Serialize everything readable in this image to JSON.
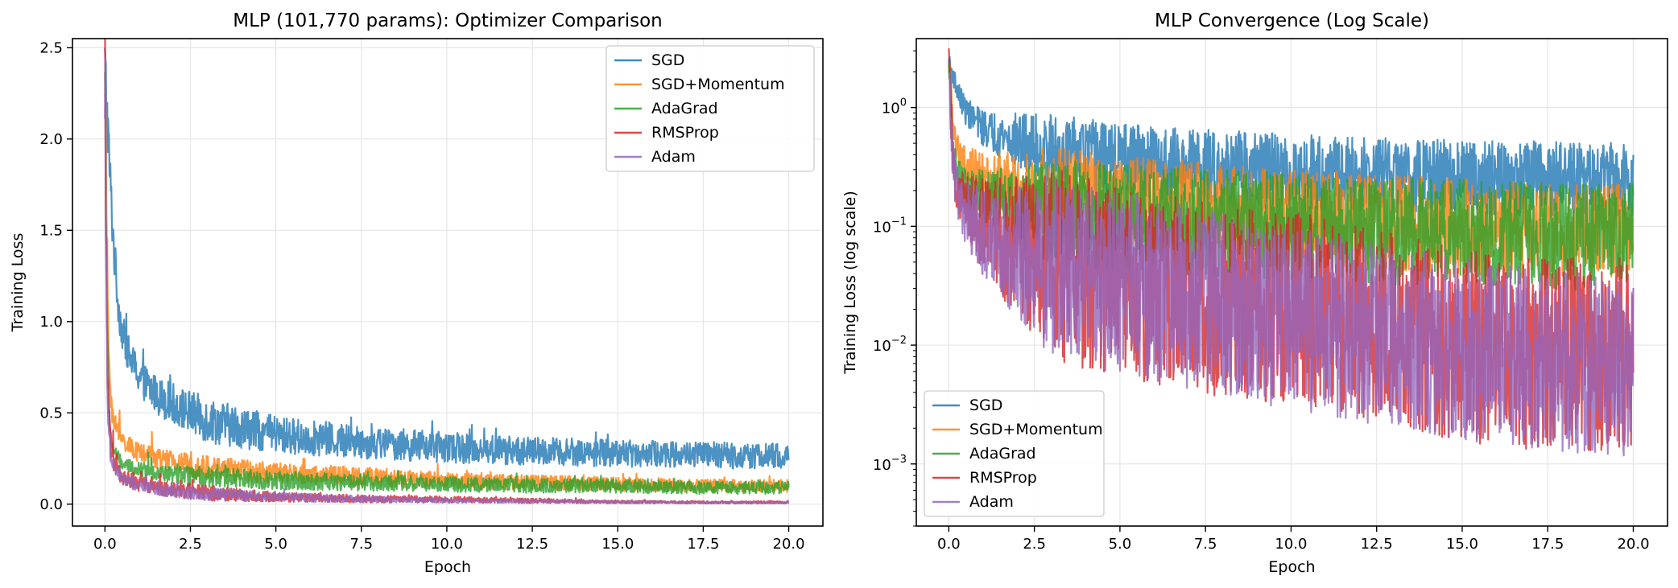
{
  "chart_data": [
    {
      "type": "line",
      "title": "MLP (101,770 params): Optimizer Comparison",
      "xlabel": "Epoch",
      "ylabel": "Training Loss",
      "xlim": [
        -0.95,
        21.0
      ],
      "ylim": [
        -0.12,
        2.55
      ],
      "xticks": [
        "0.0",
        "2.5",
        "5.0",
        "7.5",
        "10.0",
        "12.5",
        "15.0",
        "17.5",
        "20.0"
      ],
      "yticks": [
        "0.0",
        "0.5",
        "1.0",
        "1.5",
        "2.0",
        "2.5"
      ],
      "grid": true,
      "yscale": "linear",
      "legend_position": "top-right",
      "series": [
        {
          "name": "SGD",
          "color": "#1f77b4",
          "start": 2.42,
          "end": 0.26,
          "points": [
            [
              0,
              2.42
            ],
            [
              0.1,
              2.0
            ],
            [
              0.2,
              1.6
            ],
            [
              0.3,
              1.3
            ],
            [
              0.4,
              1.08
            ],
            [
              0.5,
              0.95
            ],
            [
              0.7,
              0.82
            ],
            [
              1.0,
              0.7
            ],
            [
              1.5,
              0.6
            ],
            [
              2.0,
              0.55
            ],
            [
              3.0,
              0.46
            ],
            [
              4.0,
              0.42
            ],
            [
              5.0,
              0.38
            ],
            [
              7.5,
              0.34
            ],
            [
              10.0,
              0.31
            ],
            [
              12.5,
              0.29
            ],
            [
              15.0,
              0.28
            ],
            [
              17.5,
              0.27
            ],
            [
              20.0,
              0.26
            ]
          ]
        },
        {
          "name": "SGD+Momentum",
          "color": "#ff7f0e",
          "start": 2.43,
          "end": 0.1,
          "points": [
            [
              0,
              2.43
            ],
            [
              0.05,
              1.6
            ],
            [
              0.1,
              0.9
            ],
            [
              0.2,
              0.5
            ],
            [
              0.5,
              0.35
            ],
            [
              1.0,
              0.28
            ],
            [
              2.0,
              0.23
            ],
            [
              3.0,
              0.2
            ],
            [
              5.0,
              0.17
            ],
            [
              7.5,
              0.15
            ],
            [
              10.0,
              0.13
            ],
            [
              12.5,
              0.12
            ],
            [
              15.0,
              0.11
            ],
            [
              17.5,
              0.1
            ],
            [
              20.0,
              0.1
            ]
          ]
        },
        {
          "name": "AdaGrad",
          "color": "#2ca02c",
          "start": 2.38,
          "end": 0.09,
          "points": [
            [
              0,
              2.38
            ],
            [
              0.05,
              1.3
            ],
            [
              0.1,
              0.6
            ],
            [
              0.2,
              0.32
            ],
            [
              0.5,
              0.22
            ],
            [
              1.0,
              0.19
            ],
            [
              2.0,
              0.16
            ],
            [
              3.0,
              0.15
            ],
            [
              5.0,
              0.13
            ],
            [
              7.5,
              0.12
            ],
            [
              10.0,
              0.11
            ],
            [
              12.5,
              0.1
            ],
            [
              15.0,
              0.1
            ],
            [
              17.5,
              0.09
            ],
            [
              20.0,
              0.09
            ]
          ]
        },
        {
          "name": "RMSProp",
          "color": "#d62728",
          "start": 2.4,
          "end": 0.01,
          "points": [
            [
              0,
              2.4
            ],
            [
              0.05,
              1.2
            ],
            [
              0.1,
              0.5
            ],
            [
              0.2,
              0.25
            ],
            [
              0.5,
              0.15
            ],
            [
              1.0,
              0.11
            ],
            [
              2.0,
              0.08
            ],
            [
              3.0,
              0.06
            ],
            [
              5.0,
              0.04
            ],
            [
              7.5,
              0.03
            ],
            [
              10.0,
              0.025
            ],
            [
              12.5,
              0.018
            ],
            [
              15.0,
              0.012
            ],
            [
              17.5,
              0.01
            ],
            [
              20.0,
              0.01
            ]
          ]
        },
        {
          "name": "Adam",
          "color": "#9467bd",
          "start": 2.35,
          "end": 0.008,
          "points": [
            [
              0,
              2.35
            ],
            [
              0.05,
              1.1
            ],
            [
              0.1,
              0.45
            ],
            [
              0.2,
              0.22
            ],
            [
              0.5,
              0.14
            ],
            [
              1.0,
              0.1
            ],
            [
              2.0,
              0.07
            ],
            [
              3.0,
              0.055
            ],
            [
              5.0,
              0.04
            ],
            [
              7.5,
              0.028
            ],
            [
              10.0,
              0.02
            ],
            [
              12.5,
              0.015
            ],
            [
              15.0,
              0.011
            ],
            [
              17.5,
              0.009
            ],
            [
              20.0,
              0.008
            ]
          ]
        }
      ]
    },
    {
      "type": "line",
      "title": "MLP Convergence (Log Scale)",
      "xlabel": "Epoch",
      "ylabel": "Training Loss (log scale)",
      "xlim": [
        -0.95,
        21.0
      ],
      "ylim": [
        0.0003,
        3.8
      ],
      "xticks": [
        "0.0",
        "2.5",
        "5.0",
        "7.5",
        "10.0",
        "12.5",
        "15.0",
        "17.5",
        "20.0"
      ],
      "yticks": [
        {
          "value": 1,
          "mantissa": "10",
          "exp": "0"
        },
        {
          "value": 0.1,
          "mantissa": "10",
          "exp": "−1"
        },
        {
          "value": 0.01,
          "mantissa": "10",
          "exp": "−2"
        },
        {
          "value": 0.001,
          "mantissa": "10",
          "exp": "−3"
        }
      ],
      "grid": true,
      "yscale": "log",
      "legend_position": "bottom-left",
      "series": [
        {
          "name": "SGD",
          "color": "#1f77b4",
          "points": [
            [
              0,
              2.42
            ],
            [
              0.1,
              2.0
            ],
            [
              0.2,
              1.6
            ],
            [
              0.3,
              1.3
            ],
            [
              0.5,
              0.95
            ],
            [
              1.0,
              0.7
            ],
            [
              2.0,
              0.55
            ],
            [
              3.0,
              0.46
            ],
            [
              5.0,
              0.38
            ],
            [
              7.5,
              0.34
            ],
            [
              10.0,
              0.31
            ],
            [
              12.5,
              0.29
            ],
            [
              15.0,
              0.28
            ],
            [
              17.5,
              0.27
            ],
            [
              20.0,
              0.26
            ]
          ]
        },
        {
          "name": "SGD+Momentum",
          "color": "#ff7f0e",
          "points": [
            [
              0,
              2.43
            ],
            [
              0.05,
              1.6
            ],
            [
              0.1,
              0.9
            ],
            [
              0.2,
              0.5
            ],
            [
              0.5,
              0.35
            ],
            [
              1.0,
              0.28
            ],
            [
              2.0,
              0.23
            ],
            [
              3.0,
              0.2
            ],
            [
              5.0,
              0.17
            ],
            [
              7.5,
              0.15
            ],
            [
              10.0,
              0.13
            ],
            [
              12.5,
              0.12
            ],
            [
              15.0,
              0.11
            ],
            [
              17.5,
              0.1
            ],
            [
              20.0,
              0.1
            ]
          ]
        },
        {
          "name": "AdaGrad",
          "color": "#2ca02c",
          "points": [
            [
              0,
              2.38
            ],
            [
              0.05,
              1.3
            ],
            [
              0.1,
              0.6
            ],
            [
              0.2,
              0.32
            ],
            [
              0.5,
              0.22
            ],
            [
              1.0,
              0.19
            ],
            [
              2.0,
              0.16
            ],
            [
              3.0,
              0.15
            ],
            [
              5.0,
              0.13
            ],
            [
              7.5,
              0.12
            ],
            [
              10.0,
              0.11
            ],
            [
              12.5,
              0.1
            ],
            [
              15.0,
              0.1
            ],
            [
              17.5,
              0.09
            ],
            [
              20.0,
              0.09
            ]
          ]
        },
        {
          "name": "RMSProp",
          "color": "#d62728",
          "points": [
            [
              0,
              2.4
            ],
            [
              0.05,
              1.2
            ],
            [
              0.1,
              0.5
            ],
            [
              0.2,
              0.25
            ],
            [
              0.5,
              0.15
            ],
            [
              1.0,
              0.11
            ],
            [
              2.0,
              0.08
            ],
            [
              3.0,
              0.06
            ],
            [
              5.0,
              0.04
            ],
            [
              7.5,
              0.03
            ],
            [
              10.0,
              0.025
            ],
            [
              12.5,
              0.018
            ],
            [
              15.0,
              0.012
            ],
            [
              17.5,
              0.01
            ],
            [
              20.0,
              0.01
            ]
          ]
        },
        {
          "name": "Adam",
          "color": "#9467bd",
          "points": [
            [
              0,
              2.35
            ],
            [
              0.05,
              1.1
            ],
            [
              0.1,
              0.45
            ],
            [
              0.2,
              0.22
            ],
            [
              0.5,
              0.14
            ],
            [
              1.0,
              0.1
            ],
            [
              2.0,
              0.07
            ],
            [
              3.0,
              0.055
            ],
            [
              5.0,
              0.04
            ],
            [
              7.5,
              0.028
            ],
            [
              10.0,
              0.02
            ],
            [
              12.5,
              0.015
            ],
            [
              15.0,
              0.011
            ],
            [
              17.5,
              0.009
            ],
            [
              20.0,
              0.008
            ]
          ]
        }
      ]
    }
  ]
}
